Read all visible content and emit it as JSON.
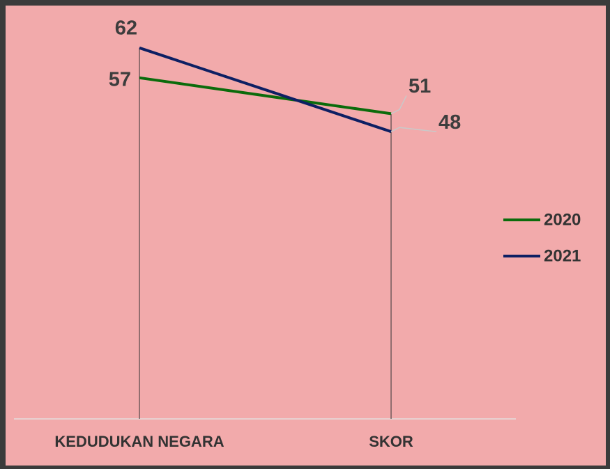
{
  "chart_data": {
    "type": "line",
    "categories": [
      "KEDUDUKAN NEGARA",
      "SKOR"
    ],
    "series": [
      {
        "name": "2020",
        "color": "#0b6b0b",
        "values": [
          57,
          51
        ]
      },
      {
        "name": "2021",
        "color": "#0d1f63",
        "values": [
          62,
          48
        ]
      }
    ],
    "ylim": [
      0,
      70
    ],
    "legend": "right"
  }
}
